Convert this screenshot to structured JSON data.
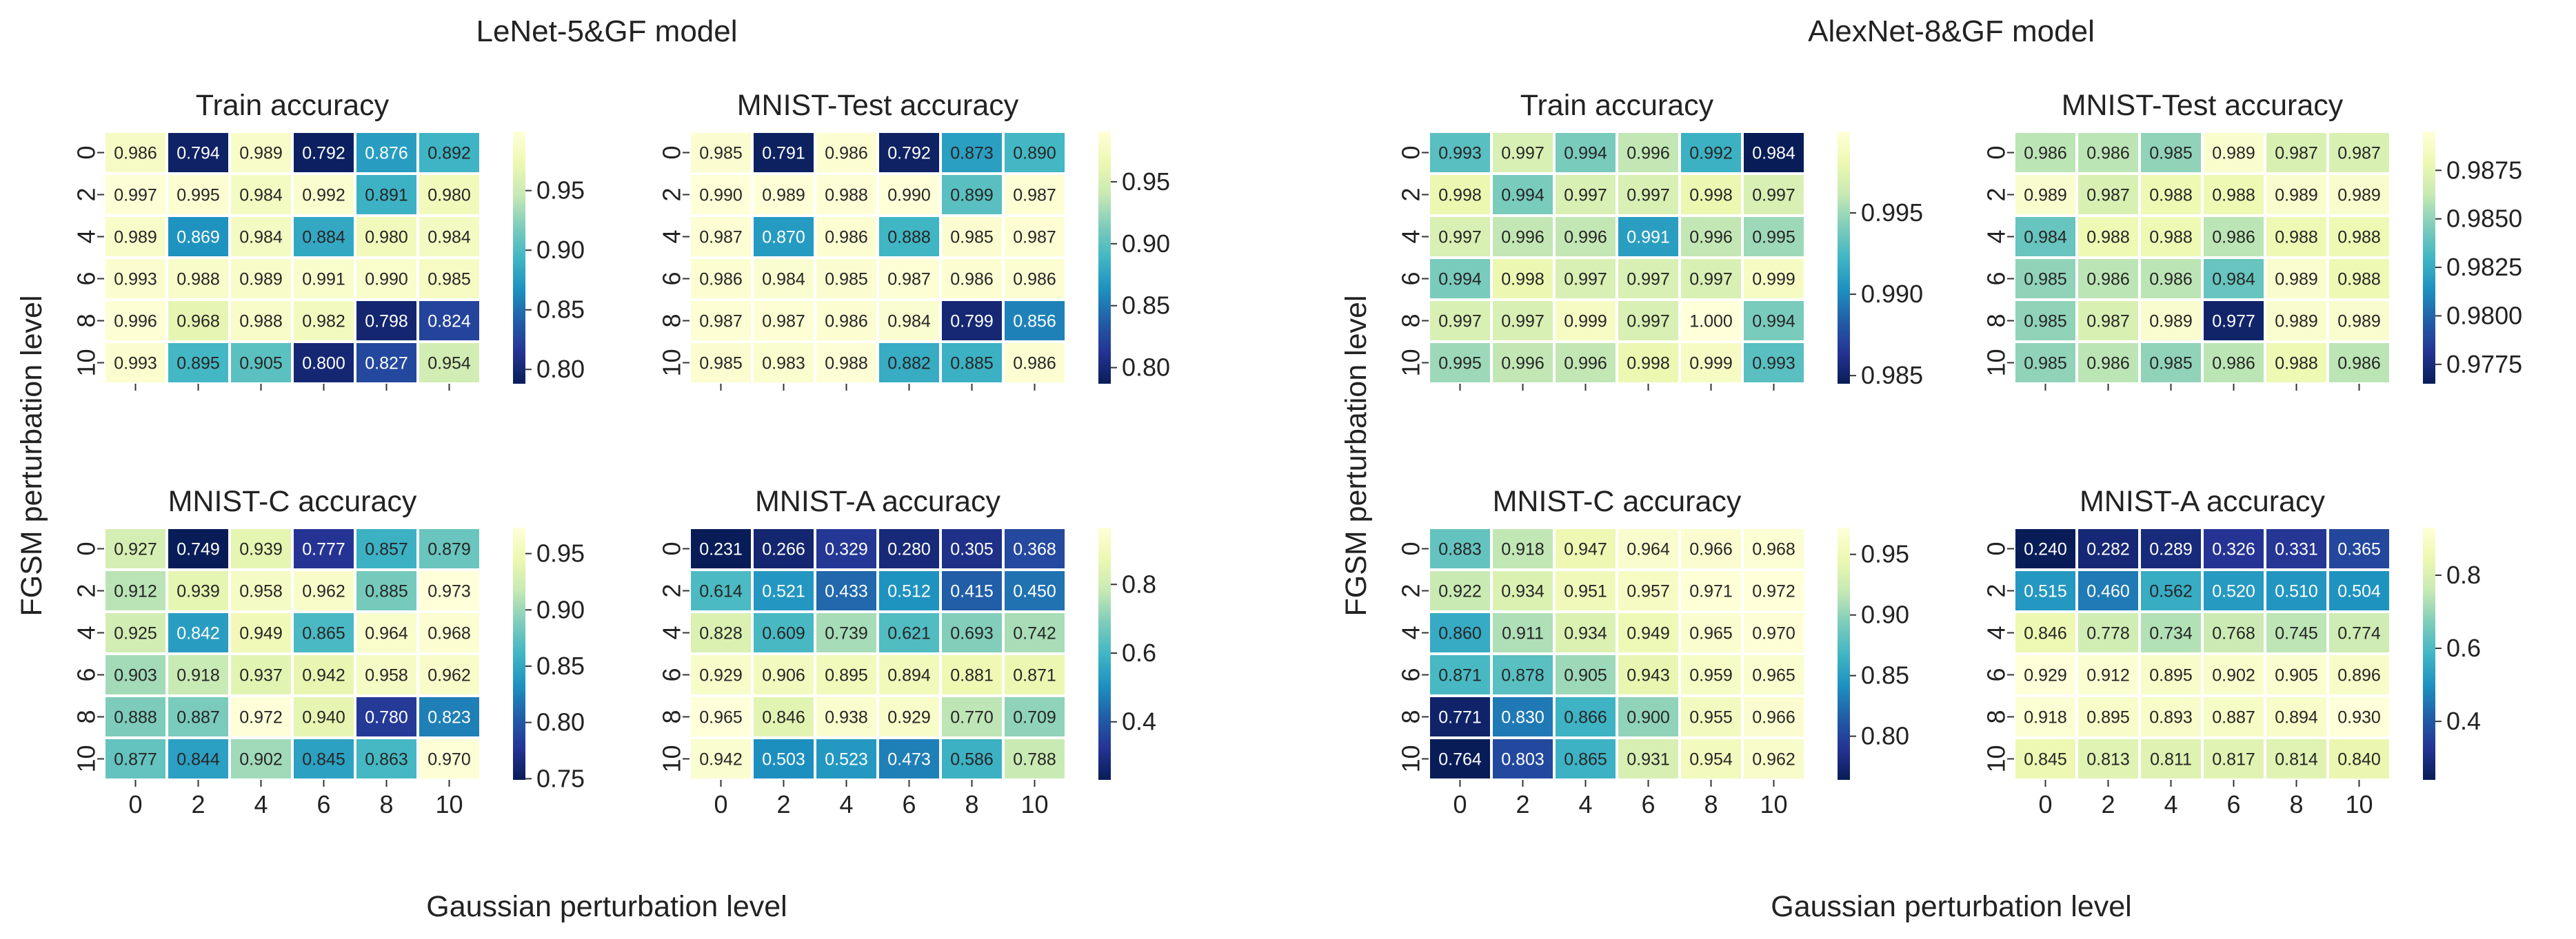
{
  "chart_data": {
    "type": "heatmap",
    "colormap": "YlGnBu",
    "xlabel": "Gaussian perturbation level",
    "ylabel": "FGSM perturbation level",
    "x_ticks": [
      "0",
      "2",
      "4",
      "6",
      "8",
      "10"
    ],
    "y_ticks": [
      "0",
      "2",
      "4",
      "6",
      "8",
      "10"
    ],
    "models": [
      {
        "title": "LeNet-5&GF model",
        "panels": [
          {
            "title": "Train accuracy",
            "vmin": 0.788,
            "vmax": 0.9995,
            "colorbar_ticks": [
              0.8,
              0.85,
              0.9,
              0.95
            ],
            "colorbar_labels": [
              "0.80",
              "0.85",
              "0.90",
              "0.95"
            ],
            "values": [
              [
                0.986,
                0.794,
                0.989,
                0.792,
                0.876,
                0.892
              ],
              [
                0.997,
                0.995,
                0.984,
                0.992,
                0.891,
                0.98
              ],
              [
                0.989,
                0.869,
                0.984,
                0.884,
                0.98,
                0.984
              ],
              [
                0.993,
                0.988,
                0.989,
                0.991,
                0.99,
                0.985
              ],
              [
                0.996,
                0.968,
                0.988,
                0.982,
                0.798,
                0.824
              ],
              [
                0.993,
                0.895,
                0.905,
                0.8,
                0.827,
                0.954
              ]
            ]
          },
          {
            "title": "MNIST-Test accuracy",
            "vmin": 0.787,
            "vmax": 0.9905,
            "colorbar_ticks": [
              0.8,
              0.85,
              0.9,
              0.95
            ],
            "colorbar_labels": [
              "0.80",
              "0.85",
              "0.90",
              "0.95"
            ],
            "values": [
              [
                0.985,
                0.791,
                0.986,
                0.792,
                0.873,
                0.89
              ],
              [
                0.99,
                0.989,
                0.988,
                0.99,
                0.899,
                0.987
              ],
              [
                0.987,
                0.87,
                0.986,
                0.888,
                0.985,
                0.987
              ],
              [
                0.986,
                0.984,
                0.985,
                0.987,
                0.986,
                0.986
              ],
              [
                0.987,
                0.987,
                0.986,
                0.984,
                0.799,
                0.856
              ],
              [
                0.985,
                0.983,
                0.988,
                0.882,
                0.885,
                0.986
              ]
            ]
          },
          {
            "title": "MNIST-C accuracy",
            "vmin": 0.749,
            "vmax": 0.973,
            "colorbar_ticks": [
              0.75,
              0.8,
              0.85,
              0.9,
              0.95
            ],
            "colorbar_labels": [
              "0.75",
              "0.80",
              "0.85",
              "0.90",
              "0.95"
            ],
            "values": [
              [
                0.927,
                0.749,
                0.939,
                0.777,
                0.857,
                0.879
              ],
              [
                0.912,
                0.939,
                0.958,
                0.962,
                0.885,
                0.973
              ],
              [
                0.925,
                0.842,
                0.949,
                0.865,
                0.964,
                0.968
              ],
              [
                0.903,
                0.918,
                0.937,
                0.942,
                0.958,
                0.962
              ],
              [
                0.888,
                0.887,
                0.972,
                0.94,
                0.78,
                0.823
              ],
              [
                0.877,
                0.844,
                0.902,
                0.845,
                0.863,
                0.97
              ]
            ]
          },
          {
            "title": "MNIST-A accuracy",
            "vmin": 0.231,
            "vmax": 0.965,
            "colorbar_ticks": [
              0.4,
              0.6,
              0.8
            ],
            "colorbar_labels": [
              "0.4",
              "0.6",
              "0.8"
            ],
            "values": [
              [
                0.231,
                0.266,
                0.329,
                0.28,
                0.305,
                0.368
              ],
              [
                0.614,
                0.521,
                0.433,
                0.512,
                0.415,
                0.45
              ],
              [
                0.828,
                0.609,
                0.739,
                0.621,
                0.693,
                0.742
              ],
              [
                0.929,
                0.906,
                0.895,
                0.894,
                0.881,
                0.871
              ],
              [
                0.965,
                0.846,
                0.938,
                0.929,
                0.77,
                0.709
              ],
              [
                0.942,
                0.503,
                0.523,
                0.473,
                0.586,
                0.788
              ]
            ]
          }
        ]
      },
      {
        "title": "AlexNet-8&GF model",
        "panels": [
          {
            "title": "Train accuracy",
            "vmin": 0.9845,
            "vmax": 1.0,
            "colorbar_ticks": [
              0.985,
              0.99,
              0.995
            ],
            "colorbar_labels": [
              "0.985",
              "0.990",
              "0.995"
            ],
            "values": [
              [
                0.993,
                0.997,
                0.994,
                0.996,
                0.992,
                0.984
              ],
              [
                0.998,
                0.994,
                0.997,
                0.997,
                0.998,
                0.997
              ],
              [
                0.997,
                0.996,
                0.996,
                0.991,
                0.996,
                0.995
              ],
              [
                0.994,
                0.998,
                0.997,
                0.997,
                0.997,
                0.999
              ],
              [
                0.997,
                0.997,
                0.999,
                0.997,
                1.0,
                0.994
              ],
              [
                0.995,
                0.996,
                0.996,
                0.998,
                0.999,
                0.993
              ]
            ]
          },
          {
            "title": "MNIST-Test accuracy",
            "vmin": 0.9765,
            "vmax": 0.9895,
            "colorbar_ticks": [
              0.9775,
              0.98,
              0.9825,
              0.985,
              0.9875
            ],
            "colorbar_labels": [
              "0.9775",
              "0.9800",
              "0.9825",
              "0.9850",
              "0.9875"
            ],
            "values": [
              [
                0.986,
                0.986,
                0.985,
                0.989,
                0.987,
                0.987
              ],
              [
                0.989,
                0.987,
                0.988,
                0.988,
                0.989,
                0.989
              ],
              [
                0.984,
                0.988,
                0.988,
                0.986,
                0.988,
                0.988
              ],
              [
                0.985,
                0.986,
                0.986,
                0.984,
                0.989,
                0.988
              ],
              [
                0.985,
                0.987,
                0.989,
                0.977,
                0.989,
                0.989
              ],
              [
                0.985,
                0.986,
                0.985,
                0.986,
                0.988,
                0.986
              ]
            ]
          },
          {
            "title": "MNIST-C accuracy",
            "vmin": 0.764,
            "vmax": 0.972,
            "colorbar_ticks": [
              0.8,
              0.85,
              0.9,
              0.95
            ],
            "colorbar_labels": [
              "0.80",
              "0.85",
              "0.90",
              "0.95"
            ],
            "values": [
              [
                0.883,
                0.918,
                0.947,
                0.964,
                0.966,
                0.968
              ],
              [
                0.922,
                0.934,
                0.951,
                0.957,
                0.971,
                0.972
              ],
              [
                0.86,
                0.911,
                0.934,
                0.949,
                0.965,
                0.97
              ],
              [
                0.871,
                0.878,
                0.905,
                0.943,
                0.959,
                0.965
              ],
              [
                0.771,
                0.83,
                0.866,
                0.9,
                0.955,
                0.966
              ],
              [
                0.764,
                0.803,
                0.865,
                0.931,
                0.954,
                0.962
              ]
            ]
          },
          {
            "title": "MNIST-A accuracy",
            "vmin": 0.24,
            "vmax": 0.93,
            "colorbar_ticks": [
              0.4,
              0.6,
              0.8
            ],
            "colorbar_labels": [
              "0.4",
              "0.6",
              "0.8"
            ],
            "values": [
              [
                0.24,
                0.282,
                0.289,
                0.326,
                0.331,
                0.365
              ],
              [
                0.515,
                0.46,
                0.562,
                0.52,
                0.51,
                0.504
              ],
              [
                0.846,
                0.778,
                0.734,
                0.768,
                0.745,
                0.774
              ],
              [
                0.929,
                0.912,
                0.895,
                0.902,
                0.905,
                0.896
              ],
              [
                0.918,
                0.895,
                0.893,
                0.887,
                0.894,
                0.93
              ],
              [
                0.845,
                0.813,
                0.811,
                0.817,
                0.814,
                0.84
              ]
            ]
          }
        ]
      }
    ]
  }
}
